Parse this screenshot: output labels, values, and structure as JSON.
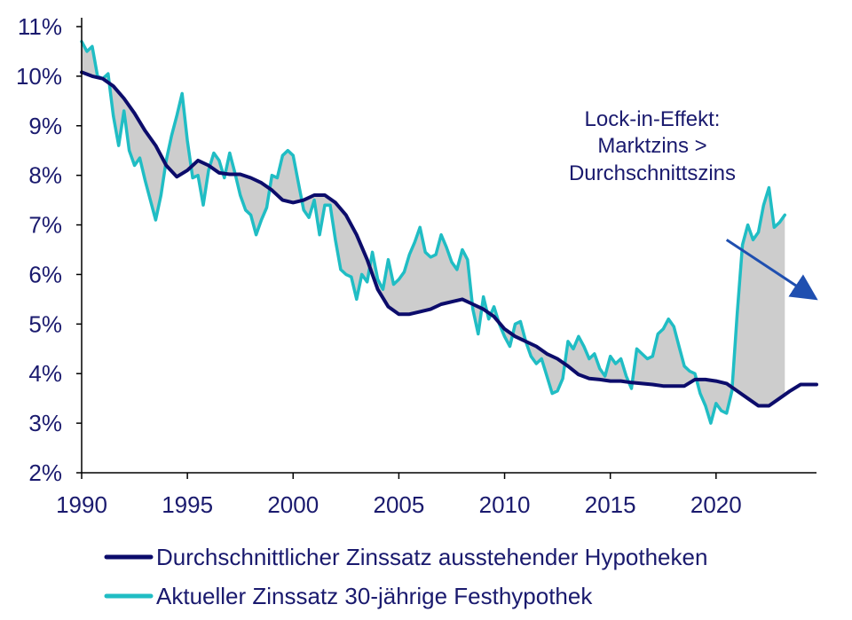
{
  "chart_data": {
    "type": "line",
    "title": "",
    "xlabel": "",
    "ylabel": "",
    "xlim": [
      1990,
      2024.75
    ],
    "ylim": [
      2,
      11
    ],
    "x_ticks": [
      1990,
      1995,
      2000,
      2005,
      2010,
      2015,
      2020
    ],
    "x_tick_labels": [
      "1990",
      "1995",
      "2000",
      "2005",
      "2010",
      "2015",
      "2020"
    ],
    "y_ticks": [
      2,
      3,
      4,
      5,
      6,
      7,
      8,
      9,
      10,
      11
    ],
    "y_tick_labels": [
      "2%",
      "3%",
      "4%",
      "5%",
      "6%",
      "7%",
      "8%",
      "9%",
      "10%",
      "11%"
    ],
    "grid": false,
    "legend_position": "bottom",
    "fill_between": true,
    "fill_color": "#cdcdcd",
    "series": [
      {
        "name": "Durchschnittlicher Zinssatz ausstehender Hypotheken",
        "color": "#0c0c6b",
        "points": [
          [
            1990.0,
            10.08
          ],
          [
            1990.5,
            10.0
          ],
          [
            1991.0,
            9.95
          ],
          [
            1991.5,
            9.8
          ],
          [
            1992.0,
            9.55
          ],
          [
            1992.5,
            9.25
          ],
          [
            1993.0,
            8.9
          ],
          [
            1993.5,
            8.6
          ],
          [
            1994.0,
            8.2
          ],
          [
            1994.5,
            7.97
          ],
          [
            1995.0,
            8.1
          ],
          [
            1995.5,
            8.3
          ],
          [
            1996.0,
            8.2
          ],
          [
            1996.5,
            8.05
          ],
          [
            1997.0,
            8.02
          ],
          [
            1997.5,
            8.02
          ],
          [
            1998.0,
            7.95
          ],
          [
            1998.5,
            7.85
          ],
          [
            1999.0,
            7.7
          ],
          [
            1999.5,
            7.5
          ],
          [
            2000.0,
            7.45
          ],
          [
            2000.5,
            7.5
          ],
          [
            2001.0,
            7.6
          ],
          [
            2001.5,
            7.6
          ],
          [
            2002.0,
            7.45
          ],
          [
            2002.5,
            7.2
          ],
          [
            2003.0,
            6.8
          ],
          [
            2003.5,
            6.3
          ],
          [
            2004.0,
            5.7
          ],
          [
            2004.5,
            5.35
          ],
          [
            2005.0,
            5.2
          ],
          [
            2005.5,
            5.2
          ],
          [
            2006.0,
            5.25
          ],
          [
            2006.5,
            5.3
          ],
          [
            2007.0,
            5.4
          ],
          [
            2007.5,
            5.45
          ],
          [
            2008.0,
            5.5
          ],
          [
            2008.5,
            5.4
          ],
          [
            2009.0,
            5.3
          ],
          [
            2009.5,
            5.15
          ],
          [
            2010.0,
            4.9
          ],
          [
            2010.5,
            4.75
          ],
          [
            2011.0,
            4.65
          ],
          [
            2011.5,
            4.55
          ],
          [
            2012.0,
            4.4
          ],
          [
            2012.5,
            4.3
          ],
          [
            2013.0,
            4.15
          ],
          [
            2013.5,
            3.98
          ],
          [
            2014.0,
            3.9
          ],
          [
            2014.5,
            3.88
          ],
          [
            2015.0,
            3.85
          ],
          [
            2015.5,
            3.85
          ],
          [
            2016.0,
            3.82
          ],
          [
            2016.5,
            3.8
          ],
          [
            2017.0,
            3.78
          ],
          [
            2017.5,
            3.75
          ],
          [
            2018.0,
            3.75
          ],
          [
            2018.5,
            3.75
          ],
          [
            2019.0,
            3.88
          ],
          [
            2019.5,
            3.88
          ],
          [
            2020.0,
            3.85
          ],
          [
            2020.5,
            3.8
          ],
          [
            2021.0,
            3.65
          ],
          [
            2021.5,
            3.5
          ],
          [
            2022.0,
            3.35
          ],
          [
            2022.5,
            3.35
          ],
          [
            2023.0,
            3.5
          ],
          [
            2023.5,
            3.65
          ],
          [
            2024.0,
            3.78
          ],
          [
            2024.75,
            3.78
          ]
        ]
      },
      {
        "name": "Aktueller Zinssatz 30-jährige Festhypothek",
        "color": "#20bdc4",
        "points": [
          [
            1990.0,
            10.7
          ],
          [
            1990.25,
            10.5
          ],
          [
            1990.5,
            10.6
          ],
          [
            1990.75,
            10.0
          ],
          [
            1991.0,
            9.95
          ],
          [
            1991.25,
            10.05
          ],
          [
            1991.5,
            9.2
          ],
          [
            1991.75,
            8.6
          ],
          [
            1992.0,
            9.3
          ],
          [
            1992.25,
            8.5
          ],
          [
            1992.5,
            8.2
          ],
          [
            1992.75,
            8.35
          ],
          [
            1993.0,
            7.9
          ],
          [
            1993.25,
            7.5
          ],
          [
            1993.5,
            7.1
          ],
          [
            1993.75,
            7.6
          ],
          [
            1994.0,
            8.3
          ],
          [
            1994.25,
            8.8
          ],
          [
            1994.5,
            9.2
          ],
          [
            1994.75,
            9.65
          ],
          [
            1995.0,
            8.7
          ],
          [
            1995.25,
            7.95
          ],
          [
            1995.5,
            8.0
          ],
          [
            1995.75,
            7.4
          ],
          [
            1996.0,
            8.1
          ],
          [
            1996.25,
            8.45
          ],
          [
            1996.5,
            8.3
          ],
          [
            1996.75,
            7.95
          ],
          [
            1997.0,
            8.45
          ],
          [
            1997.25,
            8.05
          ],
          [
            1997.5,
            7.6
          ],
          [
            1997.75,
            7.3
          ],
          [
            1998.0,
            7.2
          ],
          [
            1998.25,
            6.8
          ],
          [
            1998.5,
            7.1
          ],
          [
            1998.75,
            7.35
          ],
          [
            1999.0,
            8.0
          ],
          [
            1999.25,
            7.95
          ],
          [
            1999.5,
            8.4
          ],
          [
            1999.75,
            8.5
          ],
          [
            2000.0,
            8.4
          ],
          [
            2000.25,
            7.85
          ],
          [
            2000.5,
            7.3
          ],
          [
            2000.75,
            7.15
          ],
          [
            2001.0,
            7.5
          ],
          [
            2001.25,
            6.8
          ],
          [
            2001.5,
            7.4
          ],
          [
            2001.75,
            7.4
          ],
          [
            2002.0,
            6.7
          ],
          [
            2002.25,
            6.1
          ],
          [
            2002.5,
            6.0
          ],
          [
            2002.75,
            5.95
          ],
          [
            2003.0,
            5.5
          ],
          [
            2003.25,
            6.0
          ],
          [
            2003.5,
            5.85
          ],
          [
            2003.75,
            6.45
          ],
          [
            2004.0,
            5.9
          ],
          [
            2004.25,
            5.7
          ],
          [
            2004.5,
            6.3
          ],
          [
            2004.75,
            5.8
          ],
          [
            2005.0,
            5.9
          ],
          [
            2005.25,
            6.05
          ],
          [
            2005.5,
            6.4
          ],
          [
            2005.75,
            6.65
          ],
          [
            2006.0,
            6.95
          ],
          [
            2006.25,
            6.45
          ],
          [
            2006.5,
            6.35
          ],
          [
            2006.75,
            6.4
          ],
          [
            2007.0,
            6.8
          ],
          [
            2007.25,
            6.55
          ],
          [
            2007.5,
            6.25
          ],
          [
            2007.75,
            6.1
          ],
          [
            2008.0,
            6.5
          ],
          [
            2008.25,
            6.3
          ],
          [
            2008.5,
            5.3
          ],
          [
            2008.75,
            4.8
          ],
          [
            2009.0,
            5.55
          ],
          [
            2009.25,
            5.1
          ],
          [
            2009.5,
            5.35
          ],
          [
            2009.75,
            5.0
          ],
          [
            2010.0,
            4.75
          ],
          [
            2010.25,
            4.55
          ],
          [
            2010.5,
            5.0
          ],
          [
            2010.75,
            5.05
          ],
          [
            2011.0,
            4.65
          ],
          [
            2011.25,
            4.35
          ],
          [
            2011.5,
            4.2
          ],
          [
            2011.75,
            4.3
          ],
          [
            2012.0,
            3.95
          ],
          [
            2012.25,
            3.6
          ],
          [
            2012.5,
            3.65
          ],
          [
            2012.75,
            3.9
          ],
          [
            2013.0,
            4.65
          ],
          [
            2013.25,
            4.5
          ],
          [
            2013.5,
            4.75
          ],
          [
            2013.75,
            4.55
          ],
          [
            2014.0,
            4.3
          ],
          [
            2014.25,
            4.4
          ],
          [
            2014.5,
            4.1
          ],
          [
            2014.75,
            3.95
          ],
          [
            2015.0,
            4.35
          ],
          [
            2015.25,
            4.2
          ],
          [
            2015.5,
            4.3
          ],
          [
            2015.75,
            3.95
          ],
          [
            2016.0,
            3.7
          ],
          [
            2016.25,
            4.5
          ],
          [
            2016.5,
            4.4
          ],
          [
            2016.75,
            4.3
          ],
          [
            2017.0,
            4.35
          ],
          [
            2017.25,
            4.8
          ],
          [
            2017.5,
            4.9
          ],
          [
            2017.75,
            5.1
          ],
          [
            2018.0,
            4.95
          ],
          [
            2018.25,
            4.55
          ],
          [
            2018.5,
            4.15
          ],
          [
            2018.75,
            4.05
          ],
          [
            2019.0,
            4.0
          ],
          [
            2019.25,
            3.6
          ],
          [
            2019.5,
            3.35
          ],
          [
            2019.75,
            3.0
          ],
          [
            2020.0,
            3.4
          ],
          [
            2020.25,
            3.25
          ],
          [
            2020.5,
            3.2
          ],
          [
            2020.75,
            3.65
          ],
          [
            2021.0,
            5.2
          ],
          [
            2021.25,
            6.6
          ],
          [
            2021.5,
            7.0
          ],
          [
            2021.75,
            6.7
          ],
          [
            2022.0,
            6.85
          ],
          [
            2022.25,
            7.4
          ],
          [
            2022.5,
            7.75
          ],
          [
            2022.75,
            6.95
          ],
          [
            2023.0,
            7.05
          ],
          [
            2023.25,
            7.2
          ]
        ]
      }
    ],
    "annotation": {
      "lines": [
        "Lock-in-Effekt:",
        "Marktzins >",
        "Durchschnittszins"
      ],
      "arrow_from": [
        2020.5,
        6.7
      ],
      "arrow_to": [
        2024.4,
        5.6
      ]
    }
  }
}
